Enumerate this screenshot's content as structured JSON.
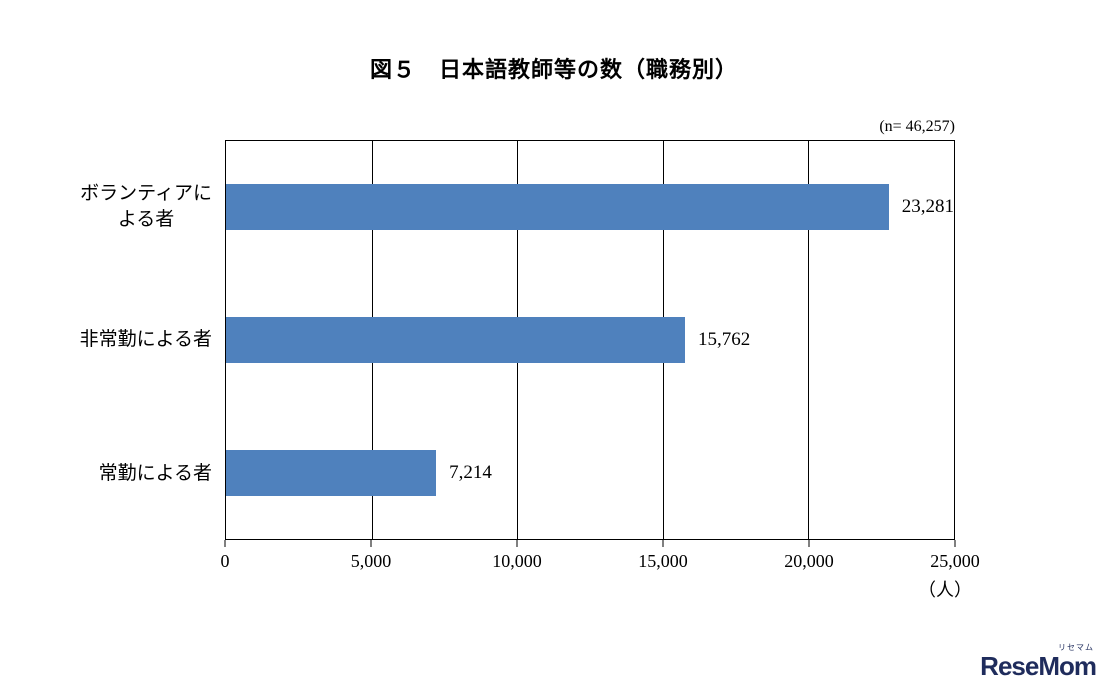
{
  "title": "図５　日本語教師等の数（職務別）",
  "n_label": "(n=  46,257)",
  "chart_data": {
    "type": "bar",
    "orientation": "horizontal",
    "title": "図５　日本語教師等の数（職務別）",
    "n": 46257,
    "categories": [
      "ボランティアに\nよる者",
      "非常勤による者",
      "常勤による者"
    ],
    "values": [
      23281,
      15762,
      7214
    ],
    "value_labels": [
      "23,281",
      "15,762",
      "7,214"
    ],
    "x_ticks": [
      "0",
      "5,000",
      "10,000",
      "15,000",
      "20,000",
      "25,000"
    ],
    "xlim": [
      0,
      25000
    ],
    "xlabel": "（人）",
    "ylabel": "",
    "unit_label": "（人）",
    "bar_color": "#4F81BD",
    "grid": "vertical",
    "legend": "none"
  },
  "footer": {
    "logo_text": "ReseMom",
    "logo_furigana": "リセマム"
  }
}
